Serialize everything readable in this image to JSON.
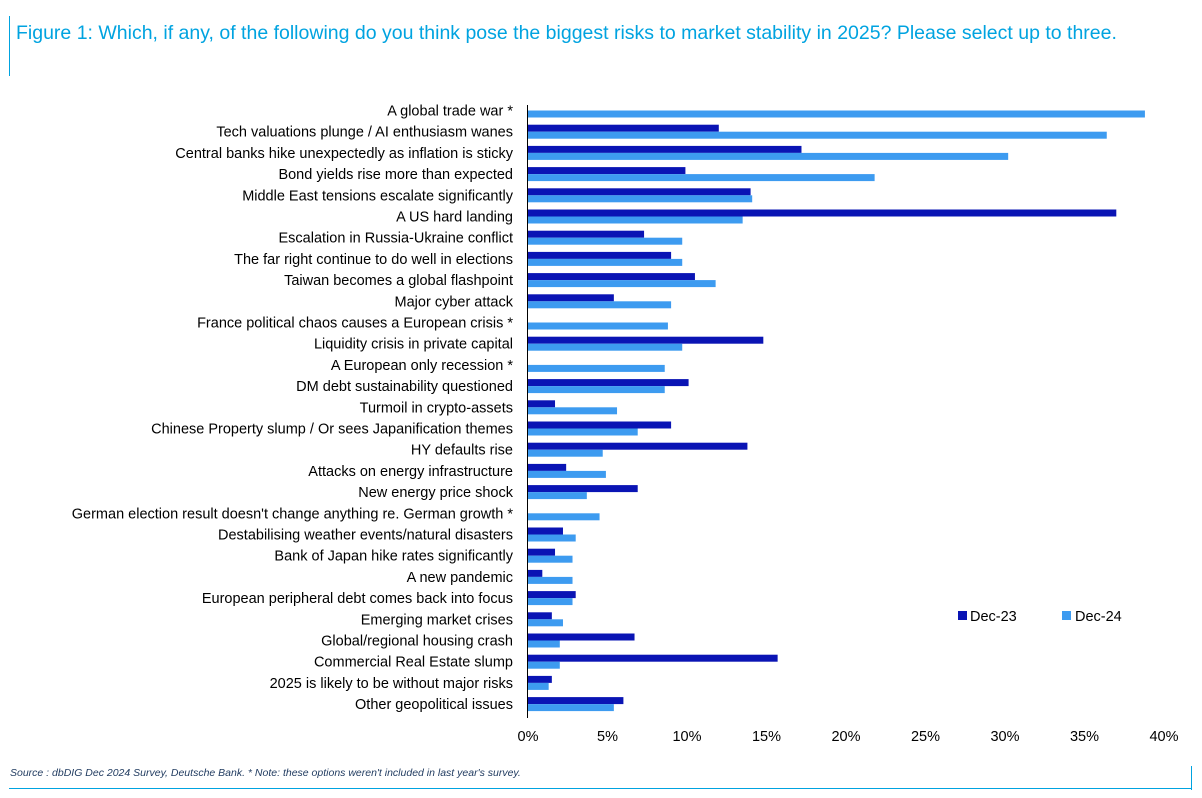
{
  "figure": {
    "title": "Figure 1: Which, if any, of the following do you think pose the biggest risks to market stability in 2025? Please select up to three.",
    "source": "Source : dbDIG Dec 2024 Survey, Deutsche Bank. * Note: these options weren't included in last year's survey."
  },
  "colors": {
    "title": "#00a3e0",
    "frame": "#00a3e0",
    "dec23": "#0a14b4",
    "dec24": "#3d9bf0"
  },
  "chart_data": {
    "type": "bar",
    "orientation": "horizontal",
    "title": "",
    "xlabel": "",
    "ylabel": "",
    "xlim": [
      0,
      40
    ],
    "x_ticks": [
      0,
      5,
      10,
      15,
      20,
      25,
      30,
      35,
      40
    ],
    "x_tick_labels": [
      "0%",
      "5%",
      "10%",
      "15%",
      "20%",
      "25%",
      "30%",
      "35%",
      "40%"
    ],
    "grid": false,
    "legend_position": "right",
    "categories": [
      "A global trade war *",
      "Tech valuations plunge / AI enthusiasm wanes",
      "Central banks hike unexpectedly as inflation is sticky",
      "Bond yields rise more than expected",
      "Middle East tensions escalate significantly",
      "A US hard landing",
      "Escalation in Russia-Ukraine conflict",
      "The far right continue to do well in elections",
      "Taiwan becomes a global flashpoint",
      "Major cyber attack",
      "France political chaos causes a European crisis *",
      "Liquidity crisis in private capital",
      "A European only recession *",
      "DM debt sustainability questioned",
      "Turmoil in crypto-assets",
      "Chinese Property slump / Or sees Japanification themes",
      "HY defaults rise",
      "Attacks on energy infrastructure",
      "New energy price shock",
      "German election result doesn't change anything re. German growth *",
      "Destabilising weather events/natural disasters",
      "Bank of Japan hike rates significantly",
      "A new pandemic",
      "European peripheral debt comes back into focus",
      "Emerging market crises",
      "Global/regional housing crash",
      "Commercial Real Estate slump",
      "2025 is likely to be without major risks",
      "Other geopolitical issues"
    ],
    "series": [
      {
        "name": "Dec-23",
        "values": [
          null,
          12.0,
          17.2,
          9.9,
          14.0,
          37.0,
          7.3,
          9.0,
          10.5,
          5.4,
          null,
          14.8,
          null,
          10.1,
          1.7,
          9.0,
          13.8,
          2.4,
          6.9,
          null,
          2.2,
          1.7,
          0.9,
          3.0,
          1.5,
          6.7,
          15.7,
          1.5,
          6.0
        ]
      },
      {
        "name": "Dec-24",
        "values": [
          38.8,
          36.4,
          30.2,
          21.8,
          14.1,
          13.5,
          9.7,
          9.7,
          11.8,
          9.0,
          8.8,
          9.7,
          8.6,
          8.6,
          5.6,
          6.9,
          4.7,
          4.9,
          3.7,
          4.5,
          3.0,
          2.8,
          2.8,
          2.8,
          2.2,
          2.0,
          2.0,
          1.3,
          5.4
        ]
      }
    ]
  }
}
